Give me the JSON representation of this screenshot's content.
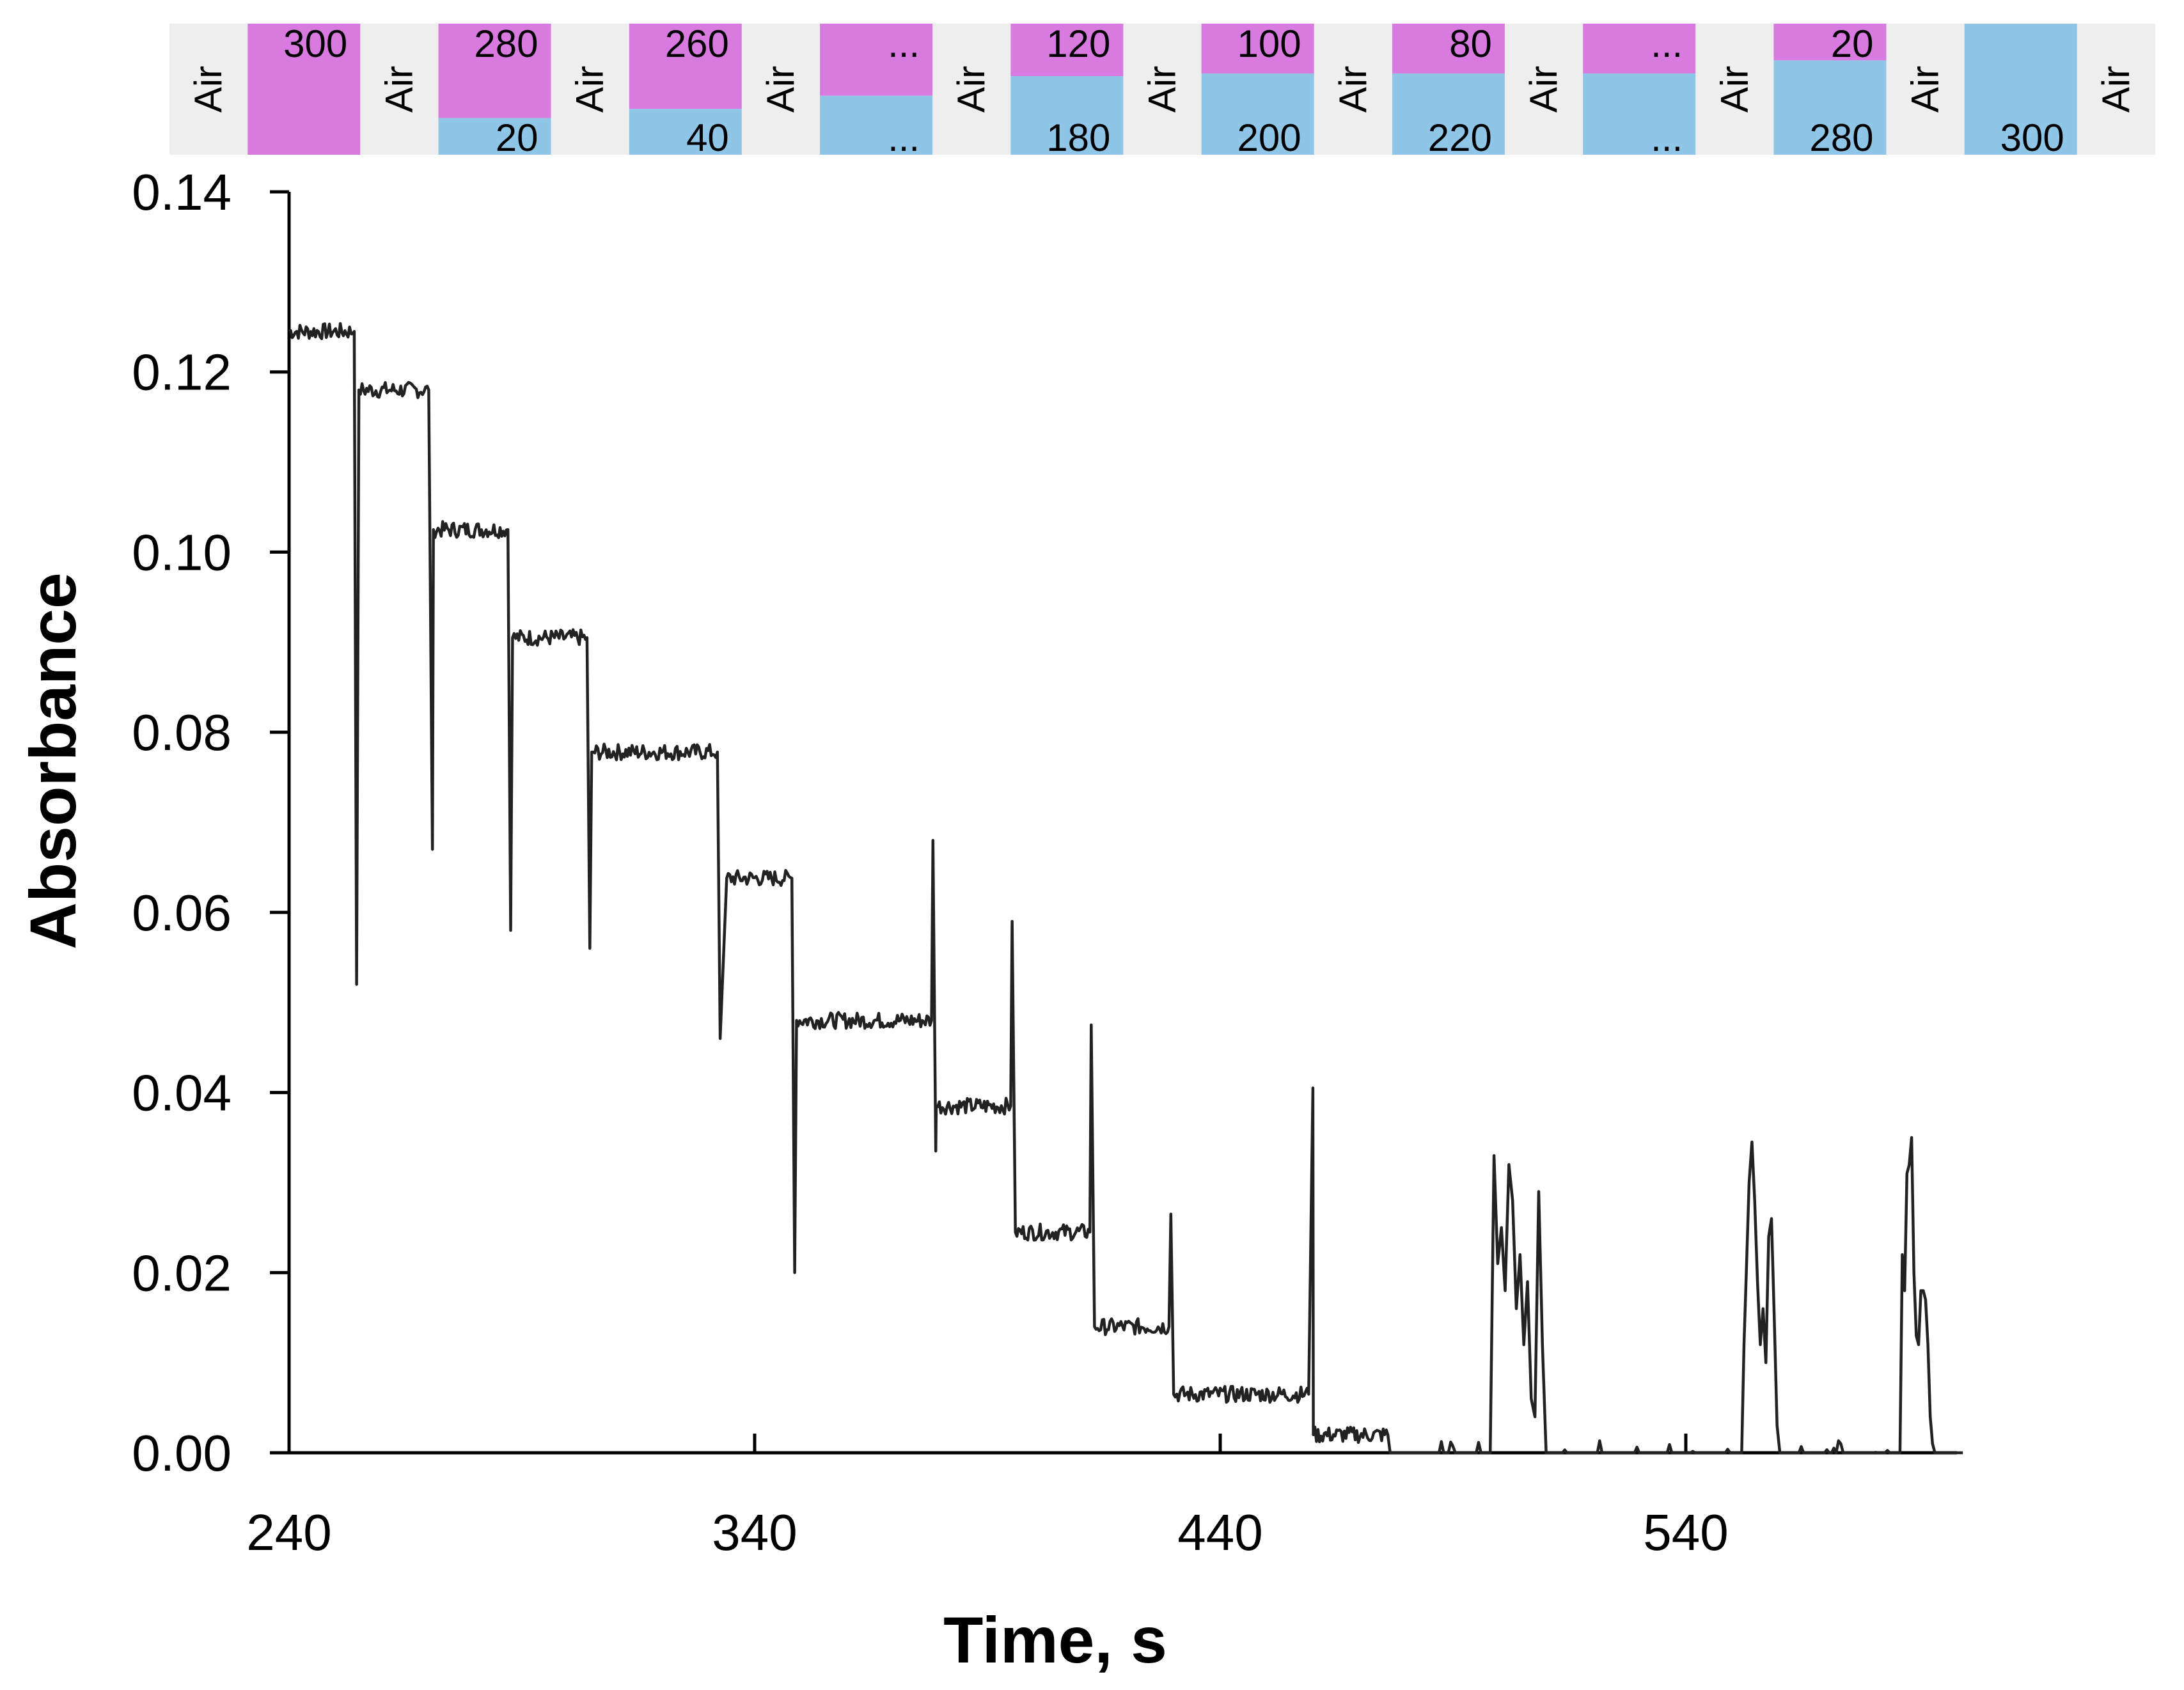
{
  "chart_data": {
    "type": "line",
    "title": "",
    "xlabel": "Time, s",
    "ylabel": "Absorbance",
    "xlim": [
      240,
      600
    ],
    "ylim": [
      0,
      0.14
    ],
    "xticks": [
      240,
      340,
      440,
      540
    ],
    "xtick_labels": [
      "240",
      "340",
      "440",
      "540"
    ],
    "yticks": [
      0,
      0.02,
      0.04,
      0.06,
      0.08,
      0.1,
      0.12,
      0.14
    ],
    "ytick_labels": [
      "0.00",
      "0.02",
      "0.04",
      "0.06",
      "0.08",
      "0.10",
      "0.12",
      "0.14"
    ],
    "grid": false,
    "legend": "none",
    "colors": {
      "line": "#222222",
      "sample_a": "#d97ae1",
      "sample_b": "#8fc5e6",
      "air": "#eeeeee",
      "axis": "#000000"
    },
    "plateaus": [
      {
        "t_start": 240,
        "t_end": 254,
        "value": 0.1245
      },
      {
        "t_start": 255,
        "t_end": 270,
        "value": 0.118
      },
      {
        "t_start": 271,
        "t_end": 287,
        "value": 0.1025
      },
      {
        "t_start": 288,
        "t_end": 304,
        "value": 0.0905
      },
      {
        "t_start": 305,
        "t_end": 332,
        "value": 0.0778
      },
      {
        "t_start": 334,
        "t_end": 348,
        "value": 0.0638
      },
      {
        "t_start": 349,
        "t_end": 378,
        "value": 0.048
      },
      {
        "t_start": 379,
        "t_end": 395,
        "value": 0.0385
      },
      {
        "t_start": 396,
        "t_end": 412,
        "value": 0.0245
      },
      {
        "t_start": 413,
        "t_end": 429,
        "value": 0.014
      },
      {
        "t_start": 430,
        "t_end": 459,
        "value": 0.0065
      },
      {
        "t_start": 460,
        "t_end": 476,
        "value": 0.002
      }
    ],
    "spikes": [
      {
        "t": 254.5,
        "value": 0.052
      },
      {
        "t": 270.8,
        "value": 0.067
      },
      {
        "t": 287.6,
        "value": 0.058
      },
      {
        "t": 304.6,
        "value": 0.056
      },
      {
        "t": 332.6,
        "value": 0.046
      },
      {
        "t": 348.6,
        "value": 0.02
      },
      {
        "t": 378.3,
        "value": 0.068
      },
      {
        "t": 378.9,
        "value": 0.0335
      },
      {
        "t": 395.3,
        "value": 0.059
      },
      {
        "t": 412.3,
        "value": 0.0475
      },
      {
        "t": 429.4,
        "value": 0.0265
      },
      {
        "t": 459.9,
        "value": 0.0405
      }
    ],
    "bumps": [
      {
        "t": [
          498,
          498.8,
          499.6,
          500.4,
          501.2,
          502,
          502.8,
          503.6,
          504.4,
          505.2,
          506,
          506.8,
          507.6,
          508.4,
          509.2,
          510
        ],
        "values": [
          0,
          0.033,
          0.021,
          0.025,
          0.018,
          0.032,
          0.028,
          0.016,
          0.022,
          0.012,
          0.019,
          0.006,
          0.004,
          0.029,
          0.012,
          0
        ]
      },
      {
        "t": [
          552,
          552.5,
          553,
          553.6,
          554.2,
          554.8,
          555.4,
          556,
          556.6,
          557.2,
          557.8,
          558.4,
          559,
          559.6,
          560.2,
          560.8
        ],
        "values": [
          0,
          0.012,
          0.02,
          0.03,
          0.0345,
          0.028,
          0.019,
          0.012,
          0.016,
          0.01,
          0.024,
          0.026,
          0.015,
          0.003,
          0,
          0
        ]
      },
      {
        "t": [
          586,
          586.5,
          587,
          587.5,
          588,
          588.5,
          589,
          589.5,
          590,
          590.5,
          591,
          591.5,
          592,
          592.5,
          593,
          593.5
        ],
        "values": [
          0,
          0.022,
          0.018,
          0.031,
          0.032,
          0.035,
          0.02,
          0.013,
          0.012,
          0.018,
          0.018,
          0.017,
          0.012,
          0.004,
          0.001,
          0
        ]
      }
    ],
    "segments": [
      {
        "kind": "air",
        "label": "Air"
      },
      {
        "kind": "sample",
        "top": "300",
        "bottom": "",
        "fraction_top": 1.0
      },
      {
        "kind": "air",
        "label": "Air"
      },
      {
        "kind": "sample",
        "top": "280",
        "bottom": "20",
        "fraction_top": 0.72
      },
      {
        "kind": "air",
        "label": "Air"
      },
      {
        "kind": "sample",
        "top": "260",
        "bottom": "40",
        "fraction_top": 0.65
      },
      {
        "kind": "air",
        "label": "Air"
      },
      {
        "kind": "sample",
        "top": "...",
        "bottom": "...",
        "fraction_top": 0.55
      },
      {
        "kind": "air",
        "label": "Air"
      },
      {
        "kind": "sample",
        "top": "120",
        "bottom": "180",
        "fraction_top": 0.4
      },
      {
        "kind": "air",
        "label": "Air"
      },
      {
        "kind": "sample",
        "top": "100",
        "bottom": "200",
        "fraction_top": 0.38
      },
      {
        "kind": "air",
        "label": "Air"
      },
      {
        "kind": "sample",
        "top": "80",
        "bottom": "220",
        "fraction_top": 0.38
      },
      {
        "kind": "air",
        "label": "Air"
      },
      {
        "kind": "sample",
        "top": "...",
        "bottom": "...",
        "fraction_top": 0.38
      },
      {
        "kind": "air",
        "label": "Air"
      },
      {
        "kind": "sample",
        "top": "20",
        "bottom": "280",
        "fraction_top": 0.28
      },
      {
        "kind": "air",
        "label": "Air"
      },
      {
        "kind": "sample",
        "top": "",
        "bottom": "300",
        "fraction_top": 0.0
      },
      {
        "kind": "air",
        "label": "Air"
      }
    ]
  }
}
